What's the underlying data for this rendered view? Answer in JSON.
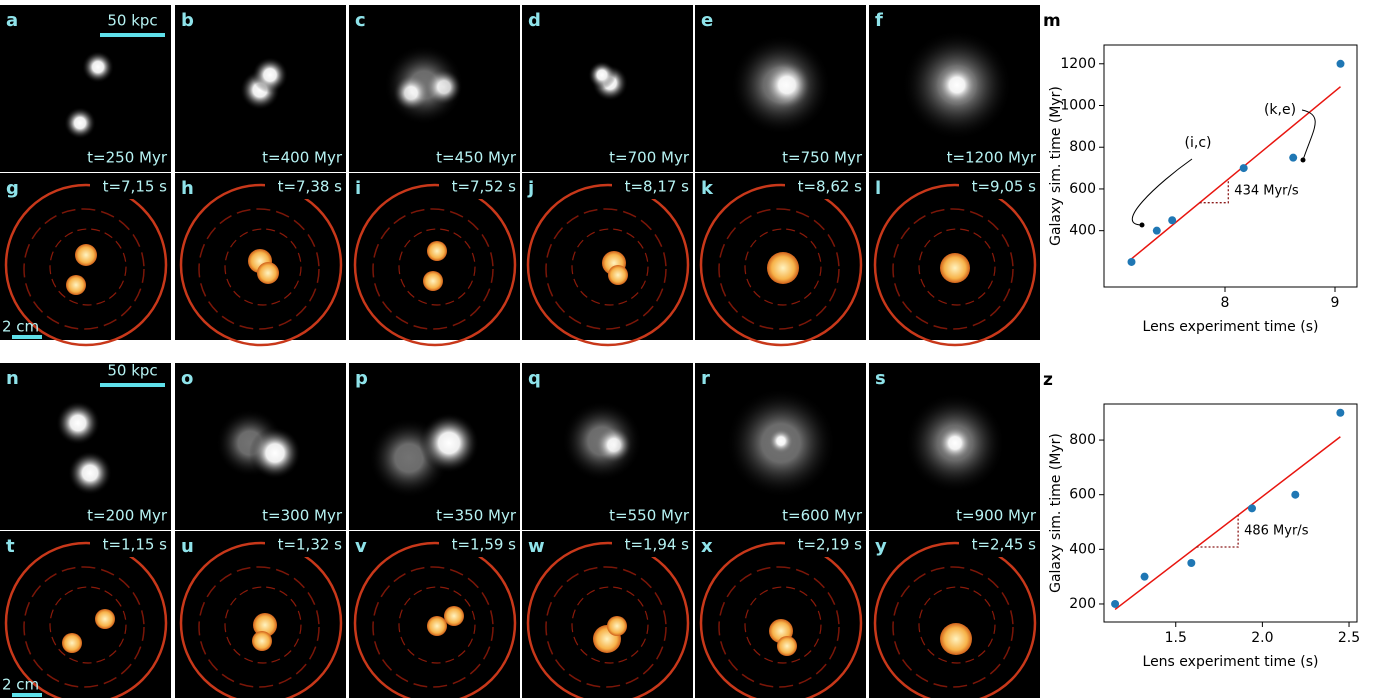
{
  "panels": [
    [
      {
        "letter": "a",
        "label": "t=250 Myr"
      },
      {
        "letter": "b",
        "label": "t=400 Myr"
      },
      {
        "letter": "c",
        "label": "t=450 Myr"
      },
      {
        "letter": "d",
        "label": "t=700 Myr"
      },
      {
        "letter": "e",
        "label": "t=750 Myr"
      },
      {
        "letter": "f",
        "label": "t=1200 Myr"
      }
    ],
    [
      {
        "letter": "g",
        "label": "t=7,15 s"
      },
      {
        "letter": "h",
        "label": "t=7,38 s"
      },
      {
        "letter": "i",
        "label": "t=7,52 s"
      },
      {
        "letter": "j",
        "label": "t=8,17 s"
      },
      {
        "letter": "k",
        "label": "t=8,62 s"
      },
      {
        "letter": "l",
        "label": "t=9,05 s"
      }
    ],
    [
      {
        "letter": "n",
        "label": "t=200 Myr"
      },
      {
        "letter": "o",
        "label": "t=300 Myr"
      },
      {
        "letter": "p",
        "label": "t=350 Myr"
      },
      {
        "letter": "q",
        "label": "t=550 Myr"
      },
      {
        "letter": "r",
        "label": "t=600 Myr"
      },
      {
        "letter": "s",
        "label": "t=900 Myr"
      }
    ],
    [
      {
        "letter": "t",
        "label": "t=1,15 s"
      },
      {
        "letter": "u",
        "label": "t=1,32 s"
      },
      {
        "letter": "v",
        "label": "t=1,59 s"
      },
      {
        "letter": "w",
        "label": "t=1,94 s"
      },
      {
        "letter": "x",
        "label": "t=2,19 s"
      },
      {
        "letter": "y",
        "label": "t=2,45 s"
      }
    ]
  ],
  "scale_bars": [
    "50 kpc",
    "2 cm",
    "50 kpc",
    "2 cm"
  ],
  "chart_data": [
    {
      "type": "scatter",
      "panel": "m",
      "xlabel": "Lens experiment time (s)",
      "ylabel": "Galaxy sim. time (Myr)",
      "x": [
        7.15,
        7.38,
        7.52,
        8.17,
        8.62,
        9.05
      ],
      "y": [
        250,
        400,
        450,
        700,
        750,
        1200
      ],
      "color": "#1f77b4",
      "fit": {
        "x": [
          7.15,
          9.05
        ],
        "y": [
          265,
          1090
        ],
        "color": "#e8150f"
      },
      "slope_label": "434 Myr/s",
      "annotations": [
        "(i,c)",
        "(k,e)"
      ],
      "xlim": [
        6.9,
        9.2
      ],
      "ylim": [
        130,
        1290
      ],
      "xticks": [
        8,
        9
      ],
      "yticks": [
        400,
        600,
        800,
        1000,
        1200
      ]
    },
    {
      "type": "scatter",
      "panel": "z",
      "xlabel": "Lens experiment time (s)",
      "ylabel": "Galaxy sim. time (Myr)",
      "x": [
        1.15,
        1.32,
        1.59,
        1.94,
        2.19,
        2.45
      ],
      "y": [
        200,
        300,
        350,
        550,
        600,
        900
      ],
      "color": "#1f77b4",
      "fit": {
        "x": [
          1.15,
          2.45
        ],
        "y": [
          180,
          812
        ],
        "color": "#e8150f"
      },
      "slope_label": "486 Myr/s",
      "xlim": [
        1.086,
        2.546
      ],
      "ylim": [
        134,
        932
      ],
      "xticks": [
        1.5,
        {
          "value": 2,
          "label": "2.0"
        },
        2.5
      ],
      "yticks": [
        200,
        400,
        600,
        800
      ]
    }
  ]
}
